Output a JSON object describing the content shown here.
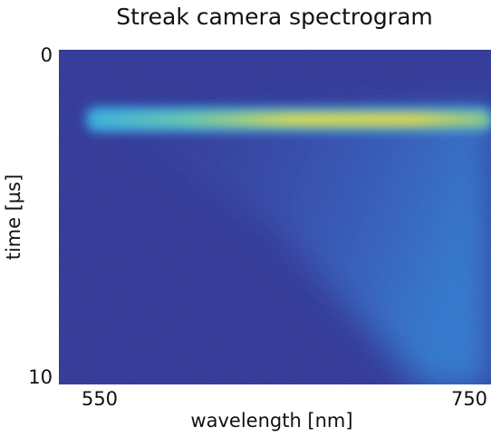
{
  "chart_data": {
    "type": "heatmap",
    "title": "Streak camera spectrogram",
    "xlabel": "wavelength [nm]",
    "ylabel": "time [µs]",
    "xlim": [
      550,
      750
    ],
    "xticks": [
      550,
      750
    ],
    "ylim": [
      0,
      10
    ],
    "yticks": [
      0,
      10
    ],
    "y_reversed": true
  }
}
